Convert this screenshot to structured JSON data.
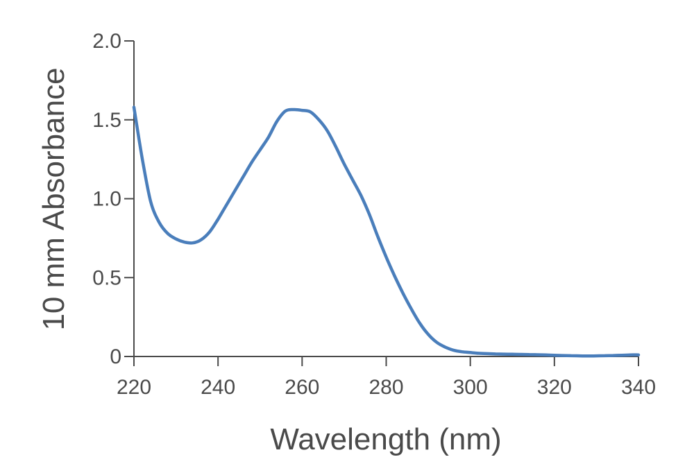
{
  "chart_data": {
    "type": "line",
    "title": "",
    "xlabel": "Wavelength (nm)",
    "ylabel": "10 mm Absorbance",
    "xlim": [
      220,
      340
    ],
    "ylim": [
      0,
      2.0
    ],
    "x_ticks": [
      220,
      240,
      260,
      280,
      300,
      320,
      340
    ],
    "x_tick_labels": [
      "220",
      "240",
      "260",
      "280",
      "300",
      "320",
      "340"
    ],
    "y_ticks": [
      0,
      0.5,
      1.0,
      1.5,
      2.0
    ],
    "y_tick_labels": [
      "0",
      "0.5",
      "1.0",
      "1.5",
      "2.0"
    ],
    "grid": false,
    "legend": "none",
    "series": [
      {
        "color": "#4a7ebb",
        "x": [
          220,
          222,
          224,
          226,
          228,
          230,
          232,
          234,
          236,
          238,
          240,
          242,
          244,
          246,
          248,
          250,
          252,
          254,
          256,
          258,
          260,
          262,
          264,
          266,
          268,
          270,
          272,
          274,
          276,
          278,
          280,
          282,
          284,
          286,
          288,
          290,
          292,
          294,
          296,
          298,
          300,
          302,
          304,
          306,
          308,
          310,
          312,
          314,
          316,
          318,
          320,
          322,
          324,
          326,
          328,
          330,
          332,
          334,
          336,
          338,
          340
        ],
        "y": [
          1.58,
          1.25,
          0.98,
          0.85,
          0.78,
          0.745,
          0.725,
          0.72,
          0.74,
          0.79,
          0.87,
          0.96,
          1.05,
          1.14,
          1.23,
          1.31,
          1.39,
          1.49,
          1.555,
          1.565,
          1.56,
          1.55,
          1.5,
          1.43,
          1.33,
          1.22,
          1.12,
          1.02,
          0.9,
          0.76,
          0.63,
          0.51,
          0.4,
          0.3,
          0.21,
          0.14,
          0.09,
          0.06,
          0.04,
          0.03,
          0.025,
          0.02,
          0.018,
          0.016,
          0.015,
          0.014,
          0.013,
          0.012,
          0.011,
          0.01,
          0.008,
          0.006,
          0.005,
          0.004,
          0.003,
          0.004,
          0.005,
          0.006,
          0.008,
          0.01,
          0.01
        ]
      }
    ]
  }
}
